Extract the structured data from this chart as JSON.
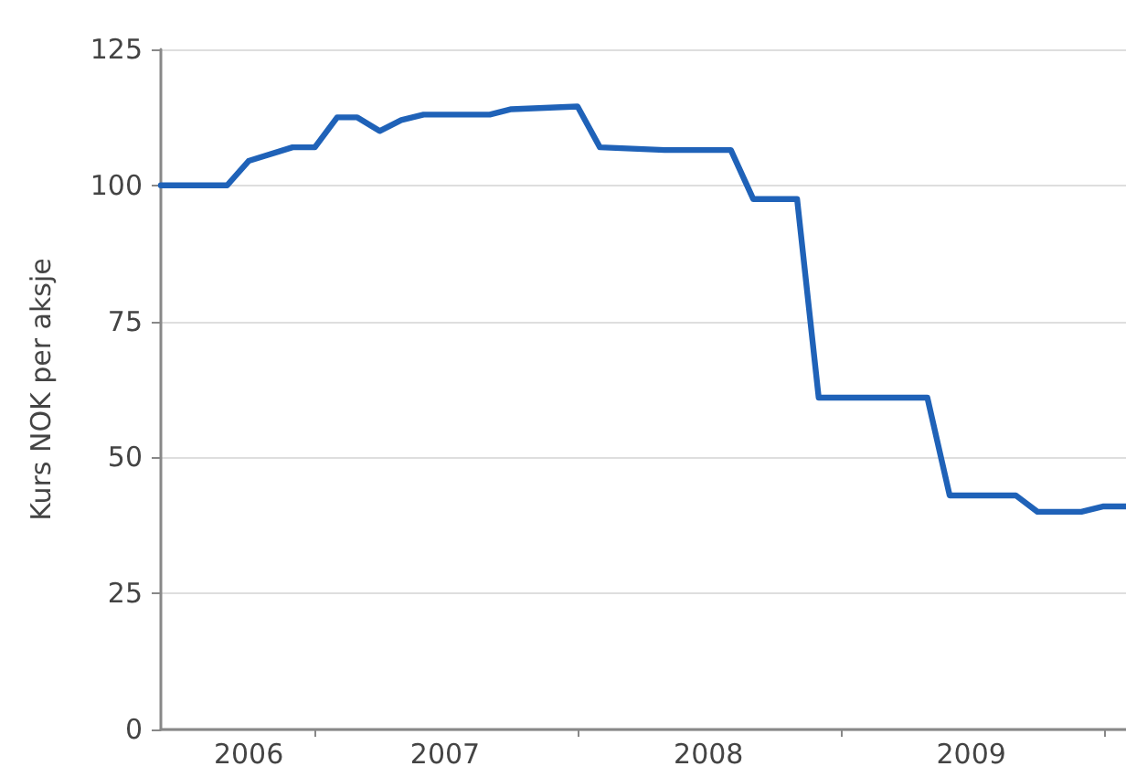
{
  "chart_data": {
    "type": "line",
    "ylabel": "Kurs NOK per aksje",
    "x": [
      "2006-06",
      "2006-09",
      "2006-10",
      "2006-12",
      "2007-01",
      "2007-02",
      "2007-03",
      "2007-04",
      "2007-05",
      "2007-06",
      "2007-09",
      "2007-10",
      "2008-01",
      "2008-02",
      "2008-05",
      "2008-08",
      "2008-09",
      "2008-11",
      "2008-12",
      "2009-05",
      "2009-06",
      "2009-09",
      "2009-10",
      "2009-12",
      "2010-01",
      "2010-02"
    ],
    "series": [
      {
        "color": "#1f62b8",
        "values": [
          100,
          100,
          104.5,
          107,
          107,
          112.5,
          112.5,
          110,
          112,
          113,
          113,
          114,
          114.5,
          107,
          106.5,
          106.5,
          97.5,
          97.5,
          61,
          61,
          43,
          43,
          40,
          40,
          41,
          41
        ]
      }
    ],
    "xlim": [
      "2006-06",
      "2010-02"
    ],
    "xticks": [
      {
        "value": "2006-10",
        "label": "2006"
      },
      {
        "value": "2007",
        "label": null
      },
      {
        "value": "2007-07",
        "label": "2007"
      },
      {
        "value": "2008",
        "label": null
      },
      {
        "value": "2008-07",
        "label": "2008"
      },
      {
        "value": "2009",
        "label": null
      },
      {
        "value": "2009-07",
        "label": "2009"
      },
      {
        "value": "2010",
        "label": null
      }
    ],
    "ylim": [
      0,
      125
    ],
    "yticks": [
      0,
      25,
      50,
      75,
      100,
      125
    ],
    "grid": "y",
    "marker": "none",
    "line_style": "solid"
  }
}
